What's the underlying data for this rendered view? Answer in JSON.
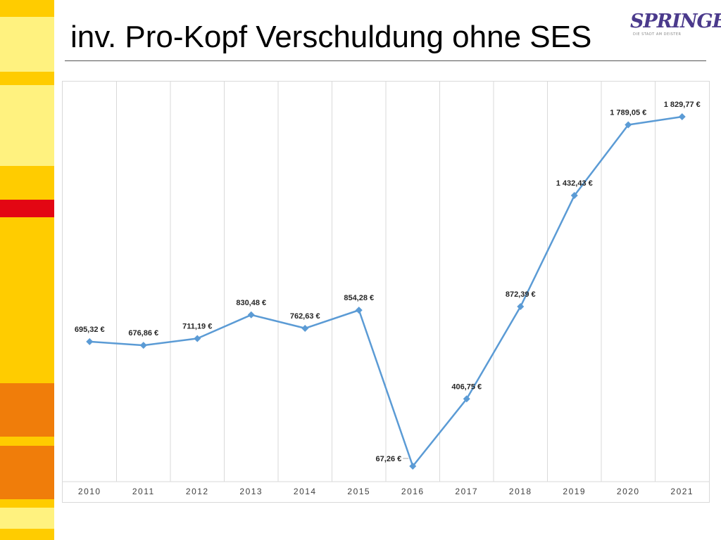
{
  "slide": {
    "title": "inv. Pro-Kopf Verschuldung ohne SES"
  },
  "logo": {
    "text": "SPRINGE.",
    "subtext": "DIE STADT AM DEISTER"
  },
  "colors": {
    "series": "#5b9bd5",
    "stripe_light": "#fff27f",
    "stripe_yellow": "#ffcc00",
    "stripe_orange": "#f07d0a",
    "stripe_red": "#e30613"
  },
  "chart_data": {
    "type": "line",
    "x": [
      "2010",
      "2011",
      "2012",
      "2013",
      "2014",
      "2015",
      "2016",
      "2017",
      "2018",
      "2019",
      "2020",
      "2021"
    ],
    "series": [
      {
        "values": [
          695.32,
          676.86,
          711.19,
          830.48,
          762.63,
          854.28,
          67.26,
          406.75,
          872.39,
          1432.43,
          1789.05,
          1829.77
        ],
        "labels": [
          "695,32 €",
          "676,86 €",
          "711,19 €",
          "830,48 €",
          "762,63 €",
          "854,28 €",
          "67,26 €",
          "406,75 €",
          "872,39 €",
          "1 432,43 €",
          "1 789,05 €",
          "1 829,77 €"
        ]
      }
    ],
    "xlabel": "",
    "ylabel": "",
    "ylim": [
      0,
      2000
    ],
    "grid": "vertical",
    "legend": "none",
    "markers": "diamond"
  }
}
